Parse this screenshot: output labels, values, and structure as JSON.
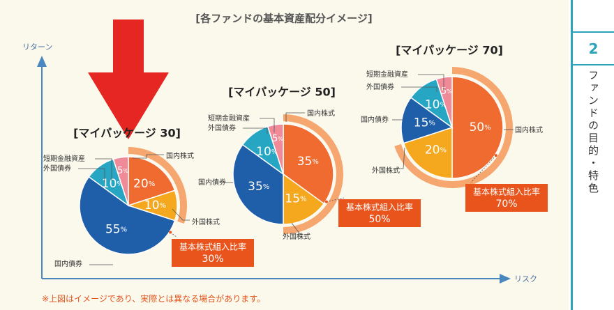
{
  "side": {
    "number": "2",
    "text": "ファンドの目的・特色"
  },
  "note": "※上図はイメージであり、実際とは異なる場合があります。",
  "colors": {
    "domestic_stock": "#ef6b30",
    "foreign_stock": "#f5a81e",
    "domestic_bond": "#1f5ea8",
    "foreign_bond": "#27a6c4",
    "short_term": "#f08a98",
    "stock_ring": "#f6a66f",
    "badge": "#e8541c",
    "axis": "#4a86c0",
    "arrow": "#e52622"
  },
  "chart_data": {
    "type": "pie",
    "title": "[各ファンドの基本資産配分イメージ]",
    "xlabel": "リスク",
    "ylabel": "リターン",
    "charts": [
      {
        "title": "[マイパッケージ 30]",
        "slices": [
          {
            "name": "国内株式",
            "value": 20,
            "label": "20%"
          },
          {
            "name": "外国株式",
            "value": 10,
            "label": "10%"
          },
          {
            "name": "国内債券",
            "value": 55,
            "label": "55%"
          },
          {
            "name": "外国債券",
            "value": 10,
            "label": "10%"
          },
          {
            "name": "短期金融資産",
            "value": 5,
            "label": "5%"
          }
        ],
        "stock_ratio": {
          "label": "基本株式組入比率",
          "value": 30,
          "display": "30%"
        }
      },
      {
        "title": "[マイパッケージ 50]",
        "slices": [
          {
            "name": "国内株式",
            "value": 35,
            "label": "35%"
          },
          {
            "name": "外国株式",
            "value": 15,
            "label": "15%"
          },
          {
            "name": "国内債券",
            "value": 35,
            "label": "35%"
          },
          {
            "name": "外国債券",
            "value": 10,
            "label": "10%"
          },
          {
            "name": "短期金融資産",
            "value": 5,
            "label": "5%"
          }
        ],
        "stock_ratio": {
          "label": "基本株式組入比率",
          "value": 50,
          "display": "50%"
        }
      },
      {
        "title": "[マイパッケージ 70]",
        "slices": [
          {
            "name": "国内株式",
            "value": 50,
            "label": "50%"
          },
          {
            "name": "外国株式",
            "value": 20,
            "label": "20%"
          },
          {
            "name": "国内債券",
            "value": 15,
            "label": "15%"
          },
          {
            "name": "外国債券",
            "value": 10,
            "label": "10%"
          },
          {
            "name": "短期金融資産",
            "value": 5,
            "label": "5%"
          }
        ],
        "stock_ratio": {
          "label": "基本株式組入比率",
          "value": 70,
          "display": "70%"
        }
      }
    ]
  }
}
